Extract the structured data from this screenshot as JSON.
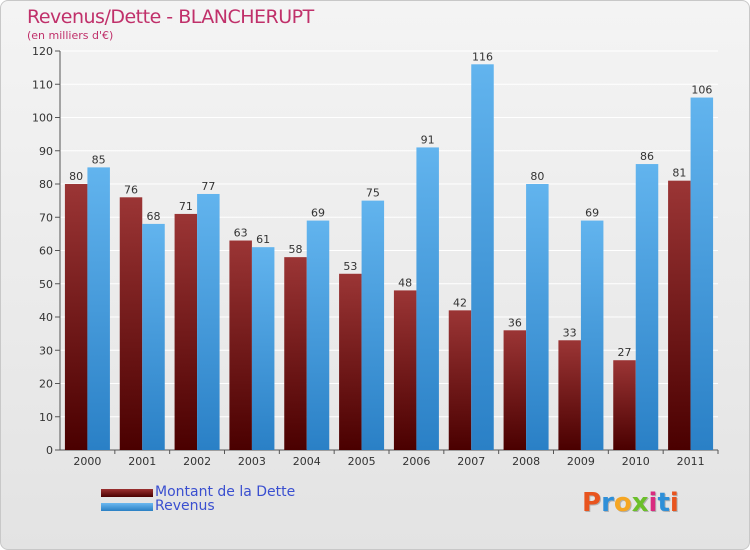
{
  "title": "Revenus/Dette - BLANCHERUPT",
  "subtitle": "(en milliers d'€)",
  "logo_text": "Proxiti",
  "logo_colors": [
    "#e8541e",
    "#2e8fd8",
    "#f5a623",
    "#6bbf2a",
    "#d92b7f",
    "#2e8fd8",
    "#e8541e"
  ],
  "chart_data": {
    "type": "bar",
    "categories": [
      "2000",
      "2001",
      "2002",
      "2003",
      "2004",
      "2005",
      "2006",
      "2007",
      "2008",
      "2009",
      "2010",
      "2011"
    ],
    "series": [
      {
        "name": "Montant de la Dette",
        "values": [
          80,
          76,
          71,
          63,
          58,
          53,
          48,
          42,
          36,
          33,
          27,
          81
        ],
        "color": "#7a1a1a"
      },
      {
        "name": "Revenus",
        "values": [
          85,
          68,
          77,
          61,
          69,
          75,
          91,
          116,
          80,
          69,
          86,
          106
        ],
        "color": "#4aa3e6"
      }
    ],
    "ylim": [
      0,
      120
    ],
    "yticks": [
      0,
      10,
      20,
      30,
      40,
      50,
      60,
      70,
      80,
      90,
      100,
      110,
      120
    ],
    "grid": true,
    "legend_position": "bottom-left"
  }
}
